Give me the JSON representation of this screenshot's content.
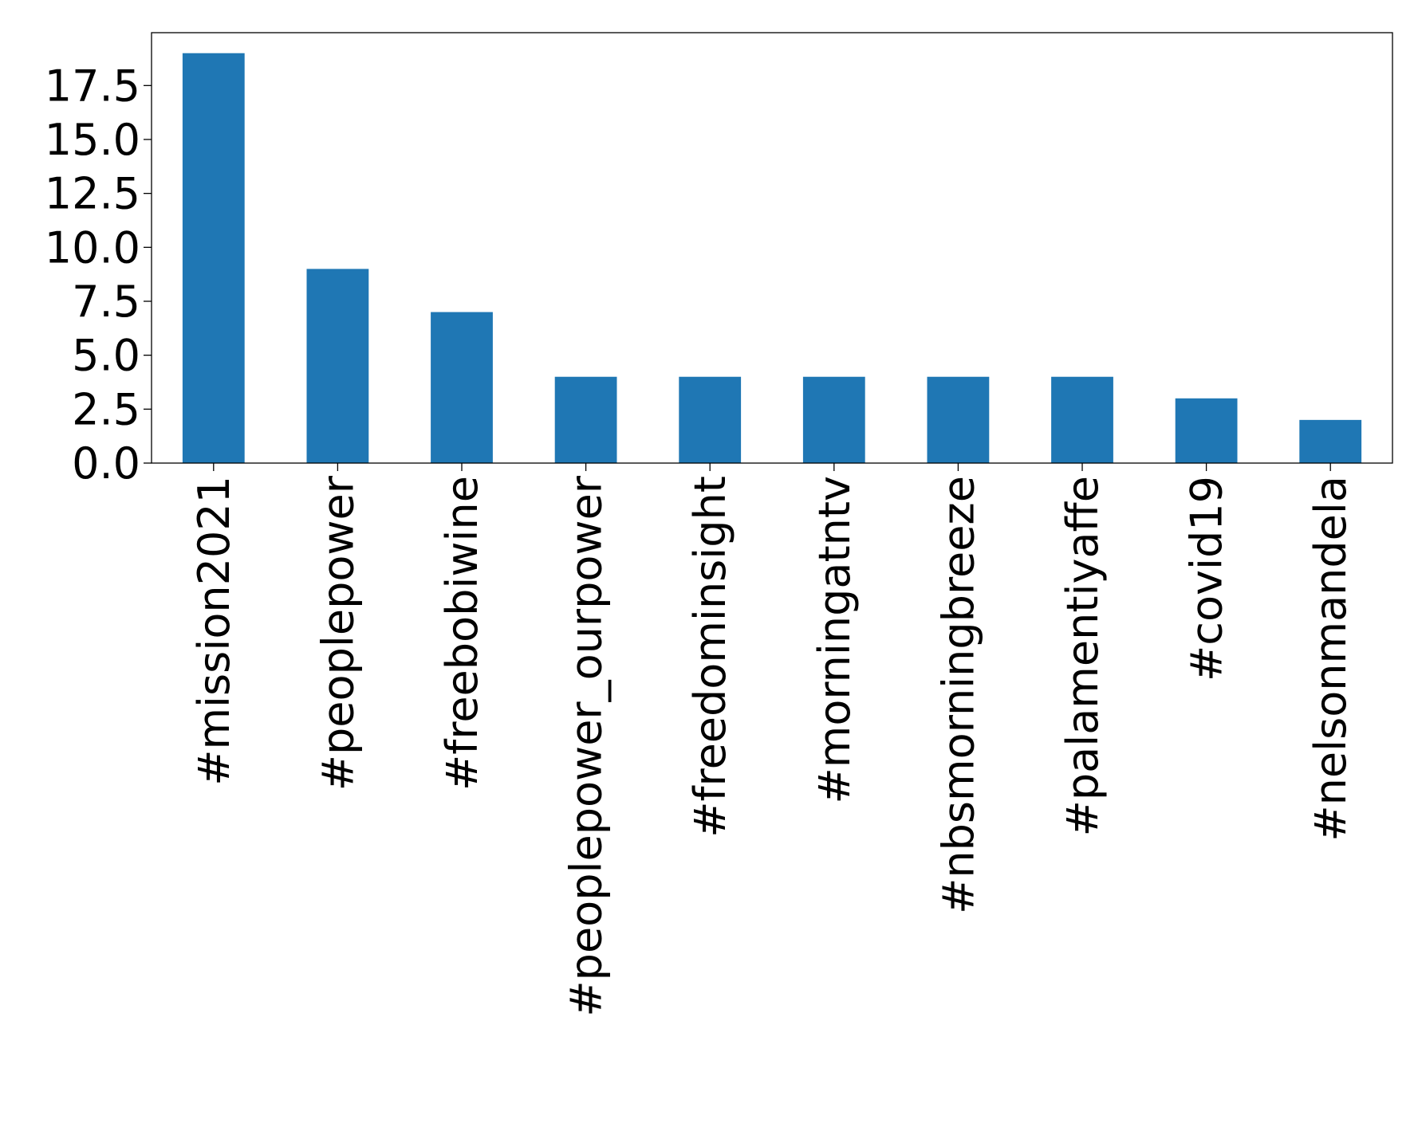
{
  "chart_data": {
    "type": "bar",
    "title": "",
    "xlabel": "",
    "ylabel": "",
    "categories": [
      "#mission2021",
      "#peoplepower",
      "#freebobiwine",
      "#peoplepower_ourpower",
      "#freedominsight",
      "#morningatntv",
      "#nbsmorningbreeze",
      "#palamentiyaffe",
      "#covid19",
      "#nelsonmandela"
    ],
    "values": [
      19,
      9,
      7,
      4,
      4,
      4,
      4,
      4,
      3,
      2
    ],
    "ylim": [
      0,
      19.95
    ],
    "yticks": [
      0.0,
      2.5,
      5.0,
      7.5,
      10.0,
      12.5,
      15.0,
      17.5
    ],
    "ytick_labels": [
      "0.0",
      "2.5",
      "5.0",
      "7.5",
      "10.0",
      "12.5",
      "15.0",
      "17.5"
    ],
    "bar_color": "#1f77b4",
    "grid": false,
    "legend": "none"
  }
}
